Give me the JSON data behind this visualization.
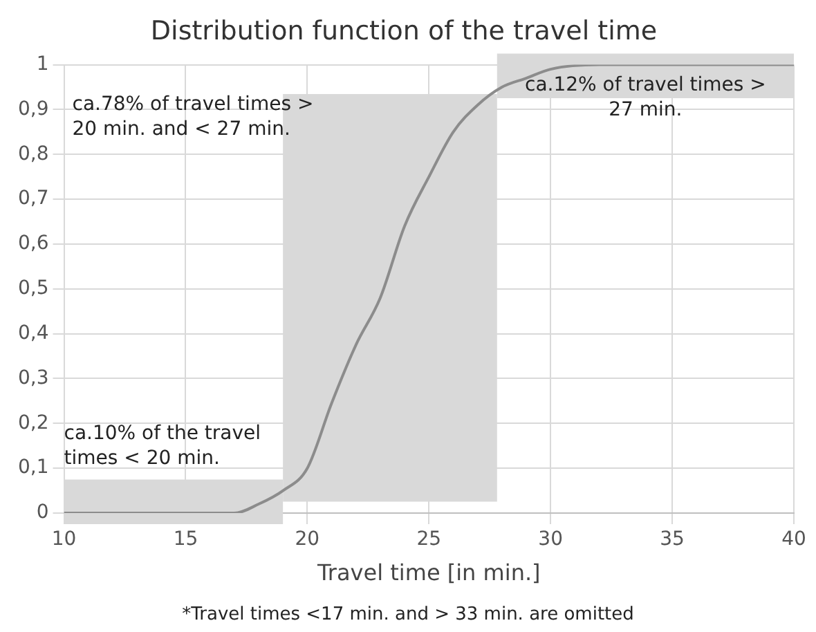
{
  "chart_data": {
    "type": "line",
    "title": "Distribution function of the travel time",
    "xlabel": "Travel time [in min.]",
    "x": [
      10,
      17,
      18,
      19,
      20,
      21,
      22,
      23,
      24,
      25,
      26,
      27,
      28,
      29,
      30,
      32,
      40
    ],
    "series": [
      {
        "color": "#8c8c8c",
        "values": [
          0,
          0,
          0.02,
          0.05,
          0.1,
          0.245,
          0.375,
          0.48,
          0.64,
          0.75,
          0.85,
          0.91,
          0.95,
          0.97,
          0.99,
          1,
          1
        ]
      }
    ],
    "xlim": [
      10,
      40
    ],
    "xticks": [
      10,
      15,
      20,
      25,
      30,
      35,
      40
    ],
    "ylim": [
      0,
      1
    ],
    "yticks": [
      0,
      {
        "value": 0.1,
        "label": "0,1"
      },
      {
        "value": 0.2,
        "label": "0,2"
      },
      {
        "value": 0.3,
        "label": "0,3"
      },
      {
        "value": 0.4,
        "label": "0,4"
      },
      {
        "value": 0.5,
        "label": "0,5"
      },
      {
        "value": 0.6,
        "label": "0,6"
      },
      {
        "value": 0.7,
        "label": "0,7"
      },
      {
        "value": 0.8,
        "label": "0,8"
      },
      {
        "value": 0.9,
        "label": "0,9"
      },
      1
    ],
    "grid": true,
    "marker": "none",
    "line_style": "solid",
    "bands": [
      {
        "axis": "x",
        "from": 10,
        "to": 19,
        "label": "ca.10% of the travel times < 20 min.",
        "color": "#d9d9d9"
      },
      {
        "axis": "x",
        "from": 19,
        "to": 27.8,
        "label": "ca.78% of travel times > 20 min. and < 27 min.",
        "color": "#d9d9d9"
      },
      {
        "axis": "x",
        "from": 27.8,
        "to": 40,
        "label": "ca.12% of travel times > 27 min.",
        "color": "#d9d9d9"
      }
    ],
    "annotations": [
      "*Travel times <17 min. and > 33 min. are omitted"
    ]
  }
}
